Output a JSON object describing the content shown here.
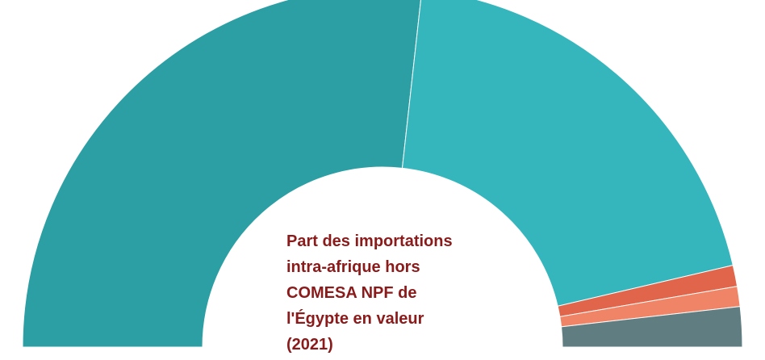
{
  "chart_data": {
    "type": "semi-donut",
    "title": "Part des importations intra-afrique hors COMESA NPF de l'Égypte en valeur (2021)",
    "values": [
      53.5,
      39.2,
      1.9,
      1.8,
      3.6
    ],
    "colors": [
      "#2b9fa3",
      "#35b6bd",
      "#e0654a",
      "#f08466",
      "#607d82"
    ]
  }
}
